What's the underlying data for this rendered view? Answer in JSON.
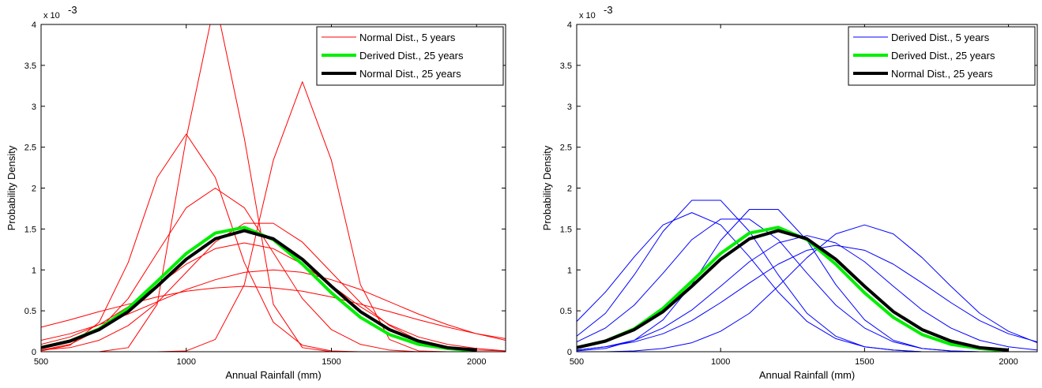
{
  "chart_data": [
    {
      "type": "line",
      "xlabel": "Annual Rainfall (mm)",
      "ylabel": "Probability Density",
      "y_multiplier": "x 10",
      "y_multiplier_exp": "-3",
      "x": [
        500,
        600,
        700,
        800,
        900,
        1000,
        1100,
        1200,
        1300,
        1400,
        1500,
        1600,
        1700,
        1800,
        1900,
        2000,
        2100
      ],
      "xlim": [
        500,
        2100
      ],
      "xticks": [
        500,
        1000,
        1500,
        2000
      ],
      "ylim": [
        0,
        4
      ],
      "yticks": [
        0,
        0.5,
        1,
        1.5,
        2,
        2.5,
        3,
        3.5,
        4
      ],
      "legend": "upper right",
      "series": [
        {
          "name": "Normal Dist., 5 years",
          "color": "#ff0000",
          "width": 1,
          "curves": [
            [
              0.02,
              0.09,
              0.27,
              0.65,
              1.21,
              1.76,
              2.0,
              1.76,
              1.21,
              0.65,
              0.27,
              0.09,
              0.02,
              0,
              0,
              0,
              0
            ],
            [
              0.09,
              0.18,
              0.33,
              0.55,
              0.81,
              1.07,
              1.26,
              1.33,
              1.26,
              1.07,
              0.81,
              0.55,
              0.33,
              0.18,
              0.09,
              0.04,
              0.01
            ],
            [
              0.14,
              0.22,
              0.33,
              0.46,
              0.61,
              0.76,
              0.88,
              0.97,
              1.0,
              0.97,
              0.88,
              0.76,
              0.61,
              0.46,
              0.33,
              0.22,
              0.14
            ],
            [
              0,
              0,
              0,
              0,
              0,
              0.01,
              0.15,
              0.82,
              2.34,
              3.3,
              2.34,
              0.82,
              0.15,
              0.01,
              0,
              0,
              0
            ],
            [
              0.01,
              0.08,
              0.36,
              1.09,
              2.13,
              2.66,
              2.13,
              1.09,
              0.36,
              0.08,
              0.01,
              0,
              0,
              0,
              0,
              0,
              0
            ],
            [
              0.3,
              0.39,
              0.49,
              0.58,
              0.67,
              0.74,
              0.78,
              0.8,
              0.78,
              0.74,
              0.67,
              0.58,
              0.49,
              0.39,
              0.3,
              0.22,
              0.16
            ],
            [
              0,
              0,
              0,
              0.05,
              0.58,
              2.61,
              4.3,
              2.61,
              0.58,
              0.05,
              0,
              0,
              0,
              0,
              0,
              0,
              0
            ],
            [
              0.02,
              0.05,
              0.14,
              0.32,
              0.6,
              0.97,
              1.34,
              1.57,
              1.57,
              1.34,
              0.97,
              0.6,
              0.32,
              0.14,
              0.05,
              0.02,
              0.01
            ]
          ]
        },
        {
          "name": "Derived Dist., 25 years",
          "color": "#00ee00",
          "width": 4,
          "values": [
            0.05,
            0.13,
            0.28,
            0.53,
            0.86,
            1.2,
            1.45,
            1.52,
            1.37,
            1.07,
            0.72,
            0.42,
            0.21,
            0.09,
            0.04,
            0.01,
            null
          ]
        },
        {
          "name": "Normal Dist., 25 years",
          "color": "#000000",
          "width": 4,
          "values": [
            0.05,
            0.13,
            0.27,
            0.49,
            0.8,
            1.13,
            1.38,
            1.48,
            1.38,
            1.13,
            0.8,
            0.49,
            0.27,
            0.13,
            0.05,
            0.02,
            null
          ]
        }
      ]
    },
    {
      "type": "line",
      "xlabel": "Annual Rainfall (mm)",
      "ylabel": "Probability Density",
      "y_multiplier": "x 10",
      "y_multiplier_exp": "-3",
      "x": [
        500,
        600,
        700,
        800,
        900,
        1000,
        1100,
        1200,
        1300,
        1400,
        1500,
        1600,
        1700,
        1800,
        1900,
        2000,
        2100
      ],
      "xlim": [
        500,
        2100
      ],
      "xticks": [
        500,
        1000,
        1500,
        2000
      ],
      "ylim": [
        0,
        4
      ],
      "yticks": [
        0,
        0.5,
        1,
        1.5,
        2,
        2.5,
        3,
        3.5,
        4
      ],
      "legend": "upper right",
      "series": [
        {
          "name": "Derived Dist., 5 years",
          "color": "#0000ff",
          "width": 1,
          "curves": [
            [
              0.19,
              0.47,
              0.94,
              1.47,
              1.85,
              1.85,
              1.47,
              0.94,
              0.47,
              0.19,
              0.06,
              0.02,
              0,
              0,
              0,
              0,
              0
            ],
            [
              0.02,
              0.06,
              0.14,
              0.29,
              0.51,
              0.8,
              1.1,
              1.33,
              1.42,
              1.33,
              1.1,
              0.8,
              0.51,
              0.29,
              0.14,
              0.06,
              0.02
            ],
            [
              0.12,
              0.29,
              0.57,
              0.96,
              1.37,
              1.62,
              1.62,
              1.37,
              0.96,
              0.57,
              0.29,
              0.12,
              0.04,
              0.01,
              0,
              0,
              0
            ],
            [
              0,
              0,
              0.01,
              0.04,
              0.11,
              0.25,
              0.47,
              0.8,
              1.15,
              1.44,
              1.55,
              1.44,
              1.15,
              0.8,
              0.47,
              0.25,
              0.11
            ],
            [
              0.01,
              0.04,
              0.14,
              0.39,
              0.82,
              1.36,
              1.74,
              1.74,
              1.36,
              0.82,
              0.39,
              0.14,
              0.04,
              0.01,
              0,
              0,
              0
            ],
            [
              0.02,
              0.06,
              0.12,
              0.22,
              0.38,
              0.6,
              0.84,
              1.07,
              1.24,
              1.3,
              1.24,
              1.07,
              0.84,
              0.6,
              0.38,
              0.22,
              0.12
            ],
            [
              0.37,
              0.73,
              1.16,
              1.55,
              1.7,
              1.55,
              1.16,
              0.73,
              0.37,
              0.16,
              0.06,
              0.02,
              0,
              0,
              0,
              0,
              0
            ]
          ]
        },
        {
          "name": "Derived Dist., 25 years",
          "color": "#00ee00",
          "width": 4,
          "values": [
            0.05,
            0.13,
            0.28,
            0.53,
            0.86,
            1.2,
            1.45,
            1.52,
            1.37,
            1.07,
            0.72,
            0.42,
            0.21,
            0.09,
            0.04,
            0.01,
            null
          ]
        },
        {
          "name": "Normal Dist., 25 years",
          "color": "#000000",
          "width": 4,
          "values": [
            0.05,
            0.13,
            0.27,
            0.49,
            0.8,
            1.13,
            1.38,
            1.48,
            1.38,
            1.13,
            0.8,
            0.49,
            0.27,
            0.13,
            0.05,
            0.02,
            null
          ]
        }
      ]
    }
  ]
}
